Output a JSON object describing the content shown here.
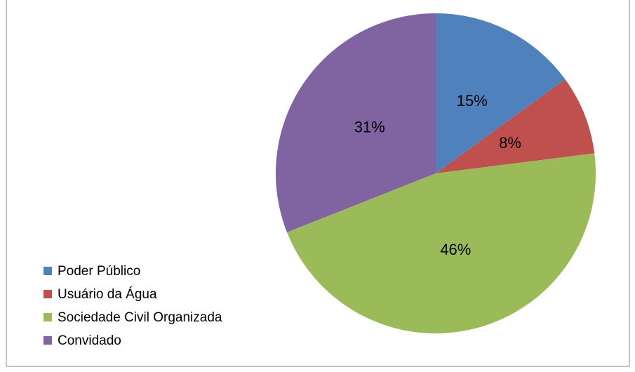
{
  "chart_data": {
    "type": "pie",
    "categories": [
      "Poder Público",
      "Usuário da Água",
      "Sociedade Civil Organizada",
      "Convidado"
    ],
    "values": [
      15,
      8,
      46,
      31
    ],
    "value_labels": [
      "15%",
      "8%",
      "46%",
      "31%"
    ],
    "colors": [
      "#4f81bd",
      "#c0504d",
      "#9bbb59",
      "#8064a2"
    ],
    "legend": "lower left"
  }
}
